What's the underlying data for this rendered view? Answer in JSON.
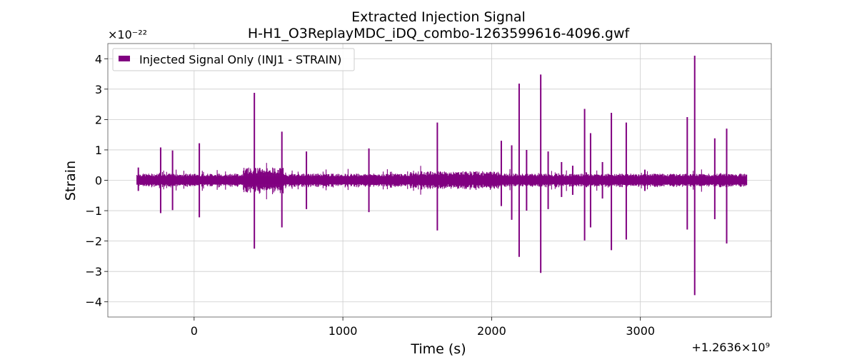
{
  "chart_data": {
    "type": "line",
    "title": "Extracted Injection Signal",
    "subtitle": "H-H1_O3ReplayMDC_iDQ_combo-1263599616-4096.gwf",
    "xlabel": "Time (s)",
    "ylabel": "Strain",
    "x_offset_label": "+1.2636×10⁹",
    "y_exponent_label": "×10⁻²²",
    "xlim": [
      -580,
      3880
    ],
    "ylim": [
      -4.5,
      4.5
    ],
    "x_ticks": [
      0,
      1000,
      2000,
      3000
    ],
    "x_tick_labels": [
      "0",
      "1000",
      "2000",
      "3000"
    ],
    "y_ticks": [
      -4,
      -3,
      -2,
      -1,
      0,
      1,
      2,
      3,
      4
    ],
    "y_tick_labels": [
      "−4",
      "−3",
      "−2",
      "−1",
      "0",
      "1",
      "2",
      "3",
      "4"
    ],
    "grid": true,
    "legend": {
      "placement": "upper-left",
      "entries": [
        "Injected Signal Only (INJ1 - STRAIN)"
      ]
    },
    "series": [
      {
        "name": "Injected Signal Only (INJ1 - STRAIN)",
        "color": "#800080",
        "x_range": [
          -385,
          3715
        ],
        "baseline_band": [
          -0.13,
          0.13
        ],
        "spikes": [
          {
            "x": -375,
            "max": 0.42,
            "min": -0.35
          },
          {
            "x": -225,
            "max": 1.08,
            "min": -1.08
          },
          {
            "x": -145,
            "max": 0.98,
            "min": -0.98
          },
          {
            "x": 35,
            "max": 1.22,
            "min": -1.22
          },
          {
            "x": 405,
            "max": 2.88,
            "min": -2.25
          },
          {
            "x": 590,
            "max": 1.6,
            "min": -1.55
          },
          {
            "x": 755,
            "max": 0.95,
            "min": -0.95
          },
          {
            "x": 1175,
            "max": 1.05,
            "min": -1.05
          },
          {
            "x": 1635,
            "max": 1.9,
            "min": -1.65
          },
          {
            "x": 2065,
            "max": 1.3,
            "min": -0.85
          },
          {
            "x": 2135,
            "max": 1.15,
            "min": -1.3
          },
          {
            "x": 2185,
            "max": 3.18,
            "min": -2.52
          },
          {
            "x": 2235,
            "max": 1.0,
            "min": -1.0
          },
          {
            "x": 2330,
            "max": 3.48,
            "min": -3.05
          },
          {
            "x": 2380,
            "max": 0.95,
            "min": -0.95
          },
          {
            "x": 2470,
            "max": 0.6,
            "min": -0.55
          },
          {
            "x": 2545,
            "max": 0.48,
            "min": -0.48
          },
          {
            "x": 2625,
            "max": 2.35,
            "min": -1.98
          },
          {
            "x": 2665,
            "max": 1.55,
            "min": -1.55
          },
          {
            "x": 2745,
            "max": 0.6,
            "min": -0.6
          },
          {
            "x": 2805,
            "max": 2.22,
            "min": -2.3
          },
          {
            "x": 2905,
            "max": 1.9,
            "min": -1.95
          },
          {
            "x": 3030,
            "max": 0.35,
            "min": -0.35
          },
          {
            "x": 3315,
            "max": 2.08,
            "min": -1.62
          },
          {
            "x": 3365,
            "max": 4.1,
            "min": -3.78
          },
          {
            "x": 3500,
            "max": 1.38,
            "min": -1.28
          },
          {
            "x": 3580,
            "max": 1.7,
            "min": -2.08
          }
        ],
        "bursts": [
          {
            "x0": 330,
            "x1": 600,
            "amp": 0.42
          },
          {
            "x0": 1450,
            "x1": 2050,
            "amp": 0.3
          }
        ]
      }
    ]
  }
}
